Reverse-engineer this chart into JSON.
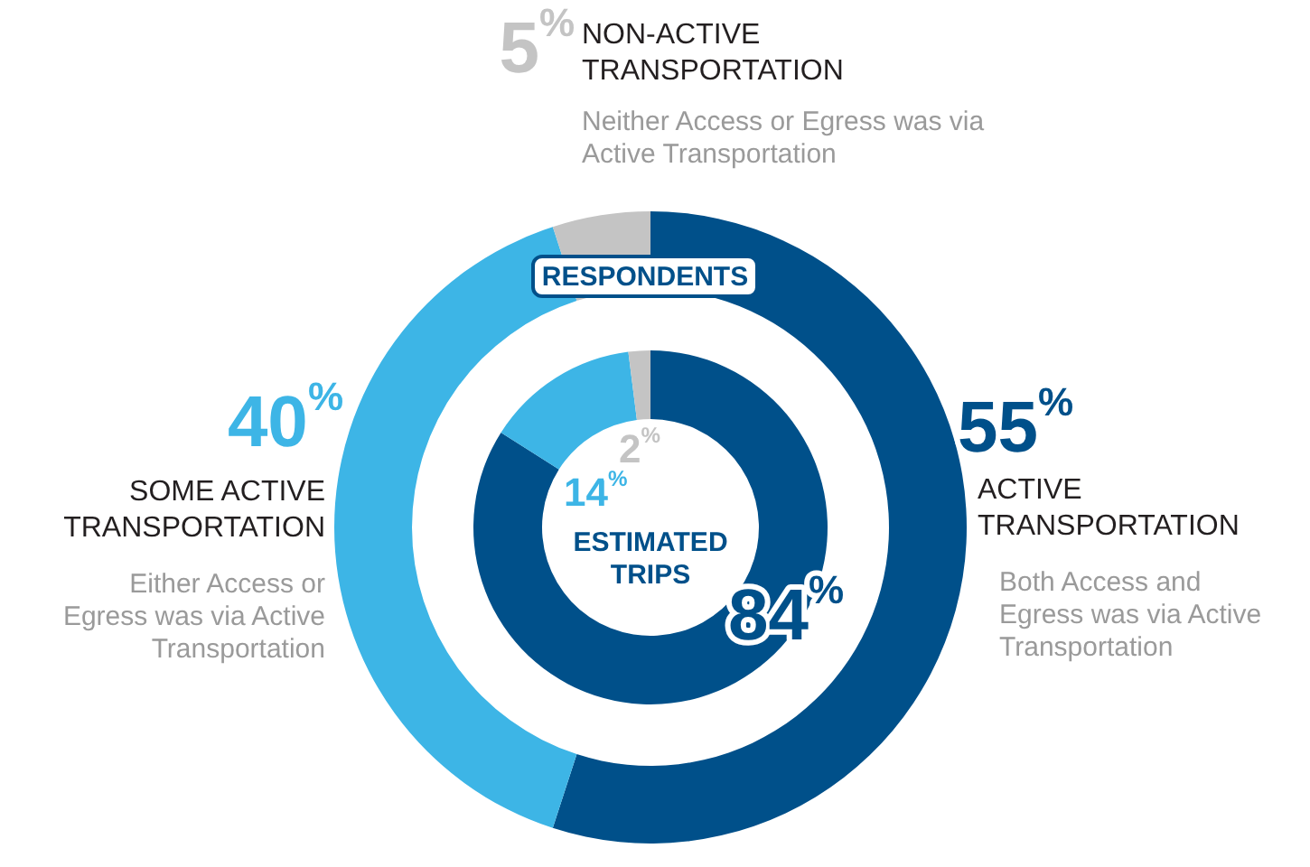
{
  "chart_data": [
    {
      "type": "donut",
      "title": "RESPONDENTS",
      "categories": [
        "ACTIVE TRANSPORTATION",
        "SOME ACTIVE TRANSPORTATION",
        "NON-ACTIVE TRANSPORTATION"
      ],
      "values": [
        55,
        40,
        5
      ],
      "colors": [
        "#00508a",
        "#3db5e6",
        "#c4c4c4"
      ],
      "value_labels": [
        "55$^{%}$",
        "40$^{%}$",
        "5$^{%}$"
      ],
      "annotations": [
        "Both Access and Egress was via Active Transportation",
        "Either Access or Egress was via Active Transportation",
        "Neither Access or Egress was via Active Transportation"
      ]
    },
    {
      "type": "donut",
      "title": "ESTIMATED TRIPS",
      "categories": [
        null,
        null,
        null
      ],
      "values": [
        84,
        14,
        2
      ],
      "colors": [
        "#00508a",
        "#3db5e6",
        "#c4c4c4"
      ],
      "value_labels": [
        "84$^{%}$",
        "14$^{%}$",
        "2$^{%}$"
      ]
    }
  ]
}
